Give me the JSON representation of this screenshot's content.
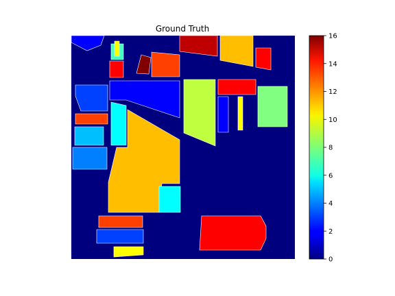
{
  "chart_data": {
    "type": "heatmap",
    "title": "Ground Truth",
    "xlabel": "",
    "ylabel": "",
    "axes_visible": false,
    "colormap": "jet",
    "colorbar": {
      "range": [
        0,
        16
      ],
      "ticks": [
        0,
        2,
        4,
        6,
        8,
        10,
        12,
        14,
        16
      ],
      "tick_labels": [
        "0",
        "2",
        "4",
        "6",
        "8",
        "10",
        "12",
        "14",
        "16"
      ]
    },
    "background_class": 0,
    "class_regions": [
      {
        "class": 2,
        "label": "top-left-blue-patch"
      },
      {
        "class": 7,
        "label": "small-green-patch"
      },
      {
        "class": 10,
        "label": "small-yellow-patch"
      },
      {
        "class": 14,
        "label": "small-red-patch"
      },
      {
        "class": 16,
        "label": "dark-red-diagonal-patch"
      },
      {
        "class": 13,
        "label": "orange-patch-top"
      },
      {
        "class": 15,
        "label": "red-patch-top"
      },
      {
        "class": 11,
        "label": "yellow-patch-top-right"
      },
      {
        "class": 14,
        "label": "red-patch-right"
      },
      {
        "class": 3,
        "label": "blue-band-left"
      },
      {
        "class": 2,
        "label": "blue-band-middle"
      },
      {
        "class": 4,
        "label": "light-blue-patch-left"
      },
      {
        "class": 13,
        "label": "orange-strip-left"
      },
      {
        "class": 5,
        "label": "cyan-patch-left"
      },
      {
        "class": 6,
        "label": "teal-patch"
      },
      {
        "class": 11,
        "label": "yellow-field-center"
      },
      {
        "class": 9,
        "label": "yellow-green-field"
      },
      {
        "class": 14,
        "label": "red-bar-upper-right"
      },
      {
        "class": 8,
        "label": "green-field-right"
      },
      {
        "class": 2,
        "label": "blue-strips-right"
      },
      {
        "class": 10,
        "label": "yellow-strip-right"
      },
      {
        "class": 6,
        "label": "cyan-patch-center"
      },
      {
        "class": 13,
        "label": "orange-patch-bottom"
      },
      {
        "class": 3,
        "label": "blue-patch-bottom"
      },
      {
        "class": 10,
        "label": "yellow-patch-bottom"
      },
      {
        "class": 14,
        "label": "red-field-bottom-right"
      }
    ]
  }
}
